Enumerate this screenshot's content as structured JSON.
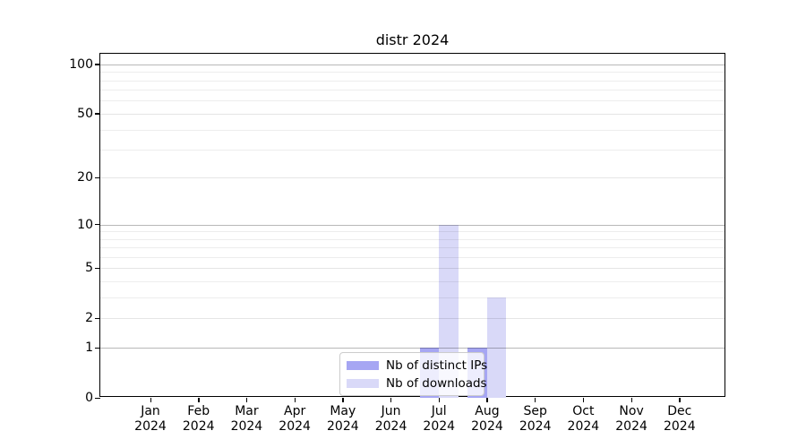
{
  "chart_data": {
    "type": "bar",
    "title": "distr 2024",
    "categories": [
      "Jan 2024",
      "Feb 2024",
      "Mar 2024",
      "Apr 2024",
      "May 2024",
      "Jun 2024",
      "Jul 2024",
      "Aug 2024",
      "Sep 2024",
      "Oct 2024",
      "Nov 2024",
      "Dec 2024"
    ],
    "series": [
      {
        "name": "Nb of distinct IPs",
        "color": "#a6a6f3",
        "values": [
          0,
          0,
          0,
          0,
          0,
          0,
          1,
          1,
          0,
          0,
          0,
          0
        ]
      },
      {
        "name": "Nb of downloads",
        "color": "#d9d9f8",
        "values": [
          0,
          0,
          0,
          0,
          0,
          0,
          10,
          3,
          0,
          0,
          0,
          0
        ]
      }
    ],
    "xlabel": "",
    "ylabel": "",
    "y_axis": {
      "scale": "log1p",
      "range": [
        0,
        115
      ],
      "ticks": [
        {
          "value": 0,
          "label": "0"
        },
        {
          "value": 1,
          "label": "1"
        },
        {
          "value": 2,
          "label": "2"
        },
        {
          "value": 5,
          "label": "5"
        },
        {
          "value": 10,
          "label": "10"
        },
        {
          "value": 20,
          "label": "20"
        },
        {
          "value": 50,
          "label": "50"
        },
        {
          "value": 100,
          "label": "100"
        }
      ],
      "decade_gridlines": [
        1,
        10,
        100
      ],
      "minor_gridlines": [
        3,
        4,
        6,
        7,
        8,
        9,
        30,
        40,
        60,
        70,
        80,
        90
      ]
    },
    "grid": true,
    "legend_position": "lower center"
  },
  "colors": {
    "bar_distinct_ips": "#a6a6f3",
    "bar_downloads": "#d9d9f8",
    "grid_decade": "rgba(0,0,0,0.28)",
    "grid_labeled_minor": "rgba(0,0,0,0.10)",
    "grid_minor": "rgba(0,0,0,0.07)",
    "axis": "#000000",
    "legend_border": "#cccccc",
    "background": "#ffffff"
  }
}
